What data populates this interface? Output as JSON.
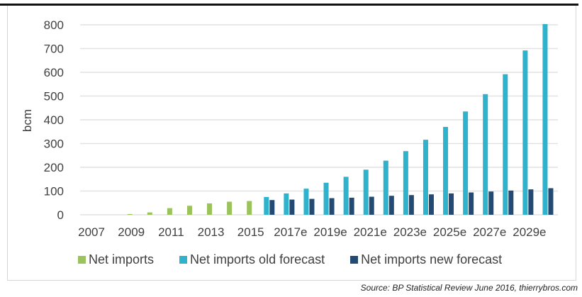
{
  "chart_data": {
    "type": "bar",
    "title": "",
    "xlabel": "",
    "ylabel": "bcm",
    "ylim": [
      0,
      800
    ],
    "yticks": [
      0,
      100,
      200,
      300,
      400,
      500,
      600,
      700,
      800
    ],
    "grid": true,
    "legend_position": "bottom",
    "categories": [
      "2007",
      "2008",
      "2009",
      "2010",
      "2011",
      "2012",
      "2013",
      "2014",
      "2015",
      "2016e",
      "2017e",
      "2018e",
      "2019e",
      "2020e",
      "2021e",
      "2022e",
      "2023e",
      "2024e",
      "2025e",
      "2026e",
      "2027e",
      "2028e",
      "2029e",
      "2030e"
    ],
    "xtick_labels": [
      "2007",
      "2009",
      "2011",
      "2013",
      "2015",
      "2017e",
      "2019e",
      "2021e",
      "2023e",
      "2025e",
      "2027e",
      "2029e"
    ],
    "series": [
      {
        "name": "Net imports",
        "color": "#9bc25b",
        "values": [
          0,
          0,
          3,
          10,
          28,
          38,
          48,
          55,
          58,
          null,
          null,
          null,
          null,
          null,
          null,
          null,
          null,
          null,
          null,
          null,
          null,
          null,
          null,
          null
        ]
      },
      {
        "name": "Net imports old forecast",
        "color": "#2fb2cc",
        "values": [
          null,
          null,
          null,
          null,
          null,
          null,
          null,
          null,
          null,
          75,
          90,
          110,
          135,
          160,
          190,
          228,
          268,
          316,
          370,
          435,
          508,
          592,
          692,
          803
        ]
      },
      {
        "name": "Net imports new forecast",
        "color": "#224a73",
        "values": [
          null,
          null,
          null,
          null,
          null,
          null,
          null,
          null,
          null,
          62,
          64,
          67,
          70,
          72,
          76,
          80,
          83,
          86,
          90,
          94,
          98,
          102,
          107,
          112
        ]
      }
    ],
    "source": "Source: BP Statistical Review June 2016, thierrybros.com"
  },
  "colors": {
    "gridline": "#e2e2e2",
    "text": "#3f3f3f"
  }
}
